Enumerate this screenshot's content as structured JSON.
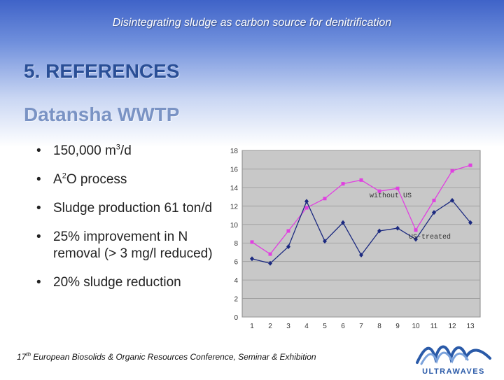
{
  "header": {
    "title": "Disintegrating sludge as carbon source for denitrification"
  },
  "section": {
    "heading": "5. REFERENCES"
  },
  "plant": {
    "name": "Datansha WWTP"
  },
  "bullets": [
    {
      "pre": "150,000 m",
      "sup": "3",
      "post": "/d"
    },
    {
      "pre": "A",
      "sup": "2",
      "post": "O process"
    },
    {
      "pre": "Sludge production 61 ton/d",
      "sup": "",
      "post": ""
    },
    {
      "pre": "25% improvement in N removal (> 3 mg/l reduced)",
      "sup": "",
      "post": ""
    },
    {
      "pre": "20% sludge reduction",
      "sup": "",
      "post": ""
    }
  ],
  "bullet_glyph": "•",
  "footer": {
    "ordinal": "17",
    "ordinal_suffix": "th",
    "text": " European Biosolids & Organic Resources Conference, Seminar & Exhibition"
  },
  "logo": {
    "text": "ULTRAWAVES",
    "icon": "wave-logo-icon",
    "color": "#2a5aa8"
  },
  "chart_data": {
    "type": "line",
    "x": [
      1,
      2,
      3,
      4,
      5,
      6,
      7,
      8,
      9,
      10,
      11,
      12,
      13
    ],
    "ylim": [
      0,
      18
    ],
    "yticks": [
      0,
      2,
      4,
      6,
      8,
      10,
      12,
      14,
      16,
      18
    ],
    "grid": true,
    "background": "#c8c8c8",
    "ylabel": "",
    "series": [
      {
        "name": "without US",
        "color": "#e040e0",
        "marker": "square",
        "values": [
          8.1,
          6.8,
          9.3,
          11.8,
          12.8,
          14.4,
          14.8,
          13.6,
          13.9,
          9.4,
          12.6,
          15.8,
          16.4
        ]
      },
      {
        "name": "US-treated",
        "color": "#1c2a80",
        "marker": "diamond",
        "values": [
          6.3,
          5.8,
          7.6,
          12.5,
          8.2,
          10.2,
          6.7,
          9.3,
          9.6,
          8.4,
          11.3,
          12.6,
          10.2
        ]
      }
    ],
    "annotations": [
      {
        "text": "without US",
        "series": 0
      },
      {
        "text": "US-treated",
        "series": 1
      }
    ]
  }
}
